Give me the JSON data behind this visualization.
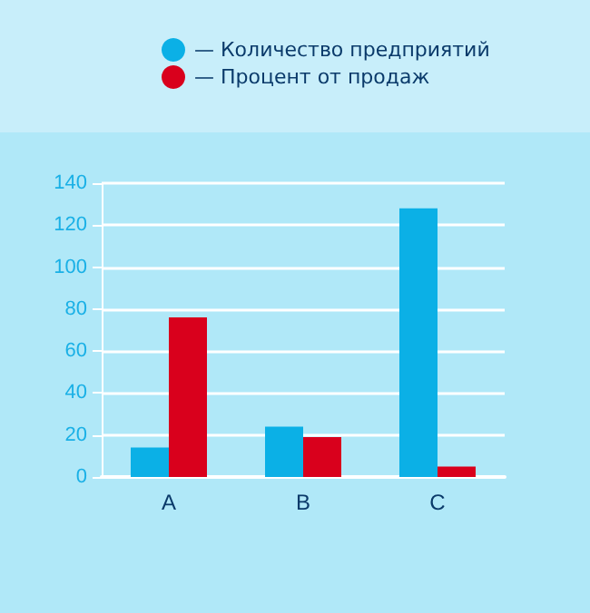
{
  "chart_data": {
    "type": "bar",
    "categories": [
      "A",
      "B",
      "C"
    ],
    "series": [
      {
        "name": "— Количество предприятий",
        "color": "#0bb0e6",
        "values": [
          14,
          24,
          128
        ]
      },
      {
        "name": "— Процент от продаж",
        "color": "#d9001c",
        "values": [
          76,
          19,
          5
        ]
      }
    ],
    "ylim": [
      0,
      140
    ],
    "yticks": [
      0,
      20,
      40,
      60,
      80,
      100,
      120,
      140
    ],
    "grid": "y",
    "legend": "top"
  }
}
